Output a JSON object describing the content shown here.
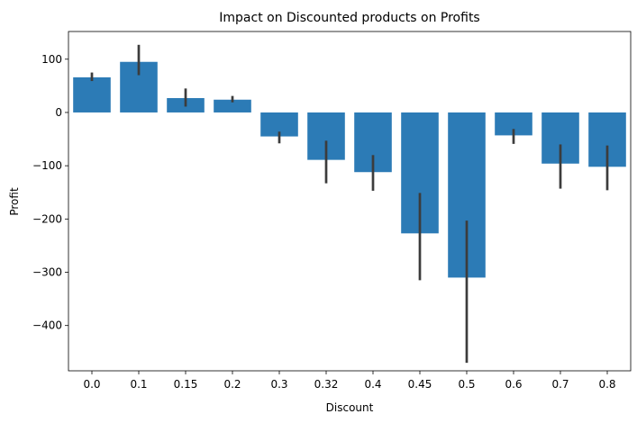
{
  "chart_data": {
    "type": "bar",
    "title": "Impact on Discounted products on Profits",
    "xlabel": "Discount",
    "ylabel": "Profit",
    "categories": [
      "0.0",
      "0.1",
      "0.15",
      "0.2",
      "0.3",
      "0.32",
      "0.4",
      "0.45",
      "0.5",
      "0.6",
      "0.7",
      "0.8"
    ],
    "values": [
      66,
      95,
      27,
      24,
      -45,
      -89,
      -112,
      -227,
      -310,
      -43,
      -96,
      -102
    ],
    "error_low": [
      59,
      70,
      11,
      19,
      -58,
      -133,
      -147,
      -315,
      -470,
      -59,
      -143,
      -146
    ],
    "error_high": [
      75,
      127,
      45,
      31,
      -36,
      -53,
      -80,
      -151,
      -203,
      -31,
      -60,
      -62
    ],
    "ylim": [
      -485,
      152
    ],
    "yticks": [
      100,
      0,
      -100,
      -200,
      -300,
      -400
    ],
    "ytick_labels": [
      "100",
      "0",
      "−100",
      "−200",
      "−300",
      "−400"
    ],
    "bar_color": "#2c7bb6",
    "errorbar_color": "#3c3c3c",
    "grid": false
  }
}
